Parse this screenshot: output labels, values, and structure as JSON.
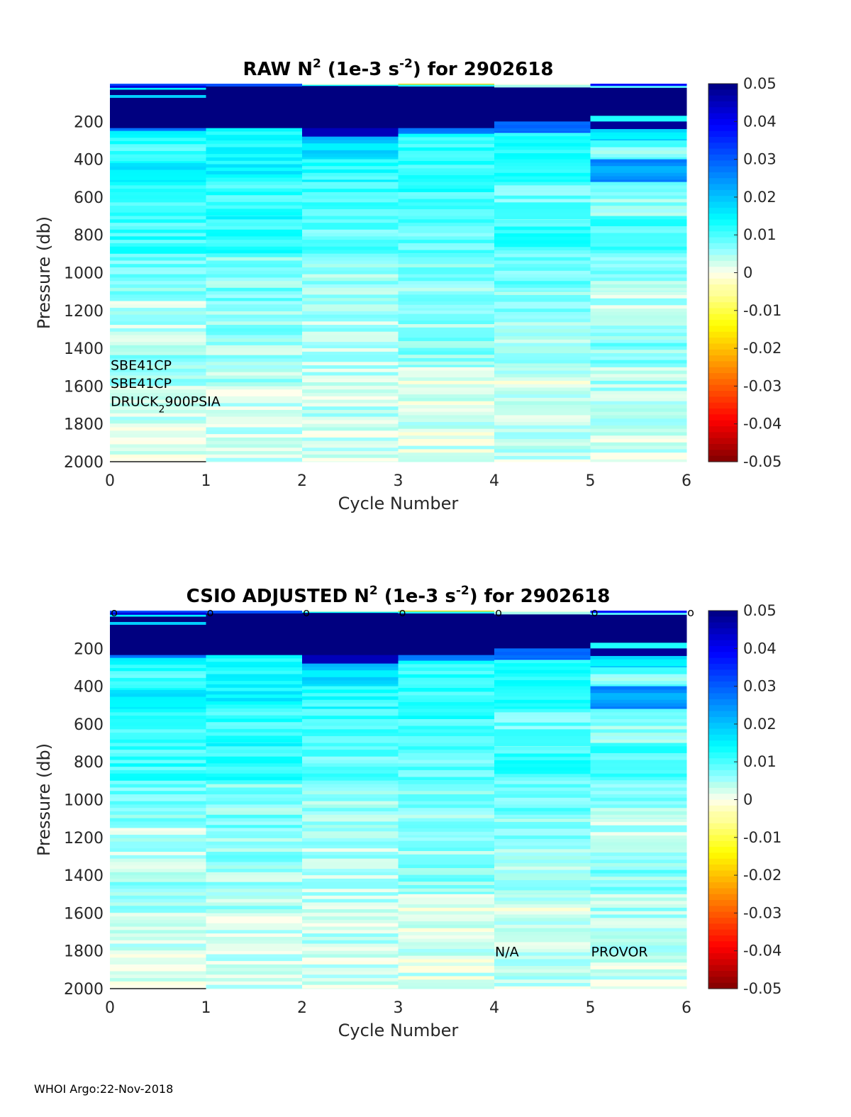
{
  "footer": "WHOI Argo:22-Nov-2018",
  "chart_data": [
    {
      "type": "heatmap",
      "title_parts": [
        "RAW N",
        "2",
        " (1e-3 s",
        "-2",
        ") for 2902618"
      ],
      "xlabel": "Cycle Number",
      "ylabel": "Pressure (db)",
      "xlim": [
        0,
        6
      ],
      "ylim": [
        0,
        2000
      ],
      "y_reversed": true,
      "xticks": [
        0,
        1,
        2,
        3,
        4,
        5,
        6
      ],
      "yticks": [
        200,
        400,
        600,
        800,
        1000,
        1200,
        1400,
        1600,
        1800,
        2000
      ],
      "colorbar": {
        "range": [
          -0.05,
          0.05
        ],
        "ticks": [
          "0.05",
          "0.04",
          "0.03",
          "0.02",
          "0.01",
          "0",
          "-0.01",
          "-0.02",
          "-0.03",
          "-0.04",
          "-0.05"
        ]
      },
      "annotations": [
        {
          "text": "SBE41CP",
          "x": 0,
          "y": 1515
        },
        {
          "text": "SBE41CP",
          "x": 0,
          "y": 1610
        },
        {
          "text_main": "DRUCK",
          "text_sub": "2",
          "text_tail": "900PSIA",
          "x": 0,
          "y": 1705
        }
      ],
      "cycle_markers": [],
      "seed": 11,
      "columns": [
        {
          "cycle": 0,
          "bands": [
            [
              0,
              10,
              0.03
            ],
            [
              10,
              22,
              0.04
            ],
            [
              22,
              32,
              0.018
            ],
            [
              32,
              60,
              0.05
            ],
            [
              60,
              75,
              0.02
            ],
            [
              75,
              235,
              0.05
            ],
            [
              235,
              250,
              0.03
            ],
            [
              250,
              320,
              0.013
            ],
            [
              320,
              420,
              0.01
            ],
            [
              420,
              520,
              0.015
            ],
            [
              520,
              700,
              0.01
            ],
            [
              700,
              900,
              0.011
            ],
            [
              900,
              1150,
              0.008
            ],
            [
              1150,
              1400,
              0.004
            ],
            [
              1400,
              1600,
              0.006
            ],
            [
              1600,
              1800,
              0.003
            ],
            [
              1800,
              2000,
              0.002
            ]
          ]
        },
        {
          "cycle": 1,
          "bands": [
            [
              0,
              15,
              0.032
            ],
            [
              15,
              235,
              0.05
            ],
            [
              235,
              300,
              0.012
            ],
            [
              300,
              500,
              0.014
            ],
            [
              500,
              700,
              0.011
            ],
            [
              700,
              900,
              0.012
            ],
            [
              900,
              1150,
              0.007
            ],
            [
              1150,
              1400,
              0.006
            ],
            [
              1400,
              1600,
              0.005
            ],
            [
              1600,
              1800,
              0.003
            ],
            [
              1800,
              2000,
              0.003
            ]
          ]
        },
        {
          "cycle": 2,
          "bands": [
            [
              0,
              6,
              0.002
            ],
            [
              6,
              12,
              0.01
            ],
            [
              12,
              235,
              0.05
            ],
            [
              235,
              280,
              0.045
            ],
            [
              280,
              400,
              0.018
            ],
            [
              400,
              520,
              0.012
            ],
            [
              520,
              700,
              0.01
            ],
            [
              700,
              900,
              0.009
            ],
            [
              900,
              1150,
              0.006
            ],
            [
              1150,
              1400,
              0.004
            ],
            [
              1400,
              1600,
              0.004
            ],
            [
              1600,
              1800,
              0.003
            ],
            [
              1800,
              2000,
              0.002
            ]
          ]
        },
        {
          "cycle": 3,
          "bands": [
            [
              0,
              5,
              -0.018
            ],
            [
              5,
              15,
              0.01
            ],
            [
              15,
              235,
              0.05
            ],
            [
              235,
              265,
              0.03
            ],
            [
              265,
              430,
              0.012
            ],
            [
              430,
              700,
              0.011
            ],
            [
              700,
              900,
              0.009
            ],
            [
              900,
              1200,
              0.006
            ],
            [
              1200,
              1500,
              0.006
            ],
            [
              1500,
              1700,
              0.002
            ],
            [
              1700,
              2000,
              0.002
            ]
          ]
        },
        {
          "cycle": 4,
          "bands": [
            [
              0,
              6,
              0.003
            ],
            [
              6,
              20,
              0.008
            ],
            [
              20,
              200,
              0.05
            ],
            [
              200,
              260,
              0.028
            ],
            [
              260,
              400,
              0.014
            ],
            [
              400,
              520,
              0.012
            ],
            [
              520,
              720,
              0.008
            ],
            [
              720,
              900,
              0.011
            ],
            [
              900,
              1100,
              0.008
            ],
            [
              1100,
              1300,
              0.006
            ],
            [
              1300,
              1500,
              0.005
            ],
            [
              1500,
              1700,
              0.002
            ],
            [
              1700,
              2000,
              0.003
            ]
          ]
        },
        {
          "cycle": 5,
          "bands": [
            [
              0,
              12,
              0.04
            ],
            [
              12,
              22,
              0.008
            ],
            [
              22,
              170,
              0.05
            ],
            [
              170,
              200,
              0.014
            ],
            [
              200,
              240,
              0.048
            ],
            [
              240,
              300,
              0.018
            ],
            [
              300,
              400,
              0.008
            ],
            [
              400,
              520,
              0.024
            ],
            [
              520,
              700,
              0.006
            ],
            [
              700,
              900,
              0.01
            ],
            [
              900,
              1100,
              0.006
            ],
            [
              1100,
              1300,
              0.004
            ],
            [
              1300,
              1500,
              0.007
            ],
            [
              1500,
              1700,
              0.004
            ],
            [
              1700,
              2000,
              0.003
            ]
          ]
        }
      ]
    },
    {
      "type": "heatmap",
      "title_parts": [
        "CSIO  ADJUSTED N",
        "2",
        " (1e-3 s",
        "-2",
        ") for 2902618"
      ],
      "xlabel": "Cycle Number",
      "ylabel": "Pressure (db)",
      "xlim": [
        0,
        6
      ],
      "ylim": [
        0,
        2000
      ],
      "y_reversed": true,
      "xticks": [
        0,
        1,
        2,
        3,
        4,
        5,
        6
      ],
      "yticks": [
        200,
        400,
        600,
        800,
        1000,
        1200,
        1400,
        1600,
        1800,
        2000
      ],
      "colorbar": {
        "range": [
          -0.05,
          0.05
        ],
        "ticks": [
          "0.05",
          "0.04",
          "0.03",
          "0.02",
          "0.01",
          "0",
          "-0.01",
          "-0.02",
          "-0.03",
          "-0.04",
          "-0.05"
        ]
      },
      "annotations": [
        {
          "text": "N/A",
          "x": 4,
          "y": 1830
        },
        {
          "text": "PROVOR",
          "x": 5,
          "y": 1830
        }
      ],
      "cycle_markers": {
        "symbol": "o",
        "cycles": [
          0,
          1,
          2,
          3,
          4,
          5,
          6
        ]
      },
      "seed": 11,
      "columns": [
        {
          "cycle": 0,
          "bands": [
            [
              0,
              10,
              0.03
            ],
            [
              10,
              22,
              0.04
            ],
            [
              22,
              32,
              0.018
            ],
            [
              32,
              60,
              0.05
            ],
            [
              60,
              75,
              0.02
            ],
            [
              75,
              235,
              0.05
            ],
            [
              235,
              250,
              0.03
            ],
            [
              250,
              320,
              0.013
            ],
            [
              320,
              420,
              0.01
            ],
            [
              420,
              520,
              0.015
            ],
            [
              520,
              700,
              0.01
            ],
            [
              700,
              900,
              0.011
            ],
            [
              900,
              1150,
              0.008
            ],
            [
              1150,
              1400,
              0.004
            ],
            [
              1400,
              1600,
              0.006
            ],
            [
              1600,
              1800,
              0.003
            ],
            [
              1800,
              2000,
              0.002
            ]
          ]
        },
        {
          "cycle": 1,
          "bands": [
            [
              0,
              15,
              0.032
            ],
            [
              15,
              235,
              0.05
            ],
            [
              235,
              300,
              0.012
            ],
            [
              300,
              500,
              0.014
            ],
            [
              500,
              700,
              0.011
            ],
            [
              700,
              900,
              0.012
            ],
            [
              900,
              1150,
              0.007
            ],
            [
              1150,
              1400,
              0.006
            ],
            [
              1400,
              1600,
              0.005
            ],
            [
              1600,
              1800,
              0.003
            ],
            [
              1800,
              2000,
              0.003
            ]
          ]
        },
        {
          "cycle": 2,
          "bands": [
            [
              0,
              6,
              0.002
            ],
            [
              6,
              12,
              0.01
            ],
            [
              12,
              235,
              0.05
            ],
            [
              235,
              280,
              0.045
            ],
            [
              280,
              400,
              0.018
            ],
            [
              400,
              520,
              0.012
            ],
            [
              520,
              700,
              0.01
            ],
            [
              700,
              900,
              0.009
            ],
            [
              900,
              1150,
              0.006
            ],
            [
              1150,
              1400,
              0.004
            ],
            [
              1400,
              1600,
              0.004
            ],
            [
              1600,
              1800,
              0.003
            ],
            [
              1800,
              2000,
              0.002
            ]
          ]
        },
        {
          "cycle": 3,
          "bands": [
            [
              0,
              5,
              -0.018
            ],
            [
              5,
              15,
              0.01
            ],
            [
              15,
              235,
              0.05
            ],
            [
              235,
              265,
              0.03
            ],
            [
              265,
              430,
              0.012
            ],
            [
              430,
              700,
              0.011
            ],
            [
              700,
              900,
              0.009
            ],
            [
              900,
              1200,
              0.006
            ],
            [
              1200,
              1500,
              0.006
            ],
            [
              1500,
              1700,
              0.002
            ],
            [
              1700,
              2000,
              0.002
            ]
          ]
        },
        {
          "cycle": 4,
          "bands": [
            [
              0,
              6,
              0.003
            ],
            [
              6,
              20,
              0.008
            ],
            [
              20,
              200,
              0.05
            ],
            [
              200,
              260,
              0.028
            ],
            [
              260,
              400,
              0.014
            ],
            [
              400,
              520,
              0.012
            ],
            [
              520,
              720,
              0.008
            ],
            [
              720,
              900,
              0.011
            ],
            [
              900,
              1100,
              0.008
            ],
            [
              1100,
              1300,
              0.006
            ],
            [
              1300,
              1500,
              0.005
            ],
            [
              1500,
              1700,
              0.002
            ],
            [
              1700,
              2000,
              0.003
            ]
          ]
        },
        {
          "cycle": 5,
          "bands": [
            [
              0,
              12,
              0.04
            ],
            [
              12,
              22,
              0.008
            ],
            [
              22,
              170,
              0.05
            ],
            [
              170,
              200,
              0.014
            ],
            [
              200,
              240,
              0.048
            ],
            [
              240,
              300,
              0.018
            ],
            [
              300,
              400,
              0.008
            ],
            [
              400,
              520,
              0.024
            ],
            [
              520,
              700,
              0.006
            ],
            [
              700,
              900,
              0.01
            ],
            [
              900,
              1100,
              0.006
            ],
            [
              1100,
              1300,
              0.004
            ],
            [
              1300,
              1500,
              0.007
            ],
            [
              1500,
              1700,
              0.004
            ],
            [
              1700,
              2000,
              0.003
            ]
          ]
        }
      ]
    }
  ]
}
